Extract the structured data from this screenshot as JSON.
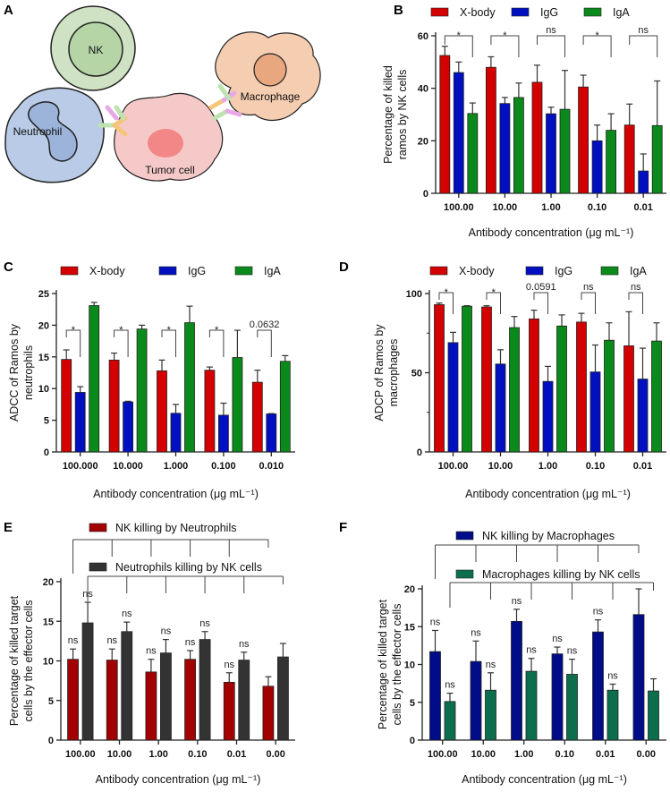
{
  "panel_a": {
    "label": "A",
    "cells": [
      "NK",
      "Neutrophil",
      "Tumor cell",
      "Macrophage"
    ],
    "colors": {
      "nk": "#cfe3c4",
      "neutrophil": "#b9cbe6",
      "tumor": "#f6c9c9",
      "macrophage": "#f5cdb0"
    }
  },
  "chart_data": [
    {
      "panel": "B",
      "type": "bar",
      "categories": [
        "100.00",
        "10.00",
        "1.00",
        "0.10",
        "0.01"
      ],
      "xlabel": "Antibody concentration (μg mL⁻¹)",
      "ylabel": [
        "Percentage of killed",
        "ramos by NK cells"
      ],
      "ylim": [
        0,
        60
      ],
      "yticks": [
        0,
        20,
        40,
        60
      ],
      "legend": "top",
      "series": [
        {
          "name": "X-body",
          "color": "#d40000",
          "values": [
            52.5,
            48,
            42.3,
            40.5,
            26
          ],
          "errors": [
            3.5,
            4,
            6.5,
            4.5,
            8
          ]
        },
        {
          "name": "IgG",
          "color": "#0010c0",
          "values": [
            46,
            34.2,
            30.3,
            20,
            8.5
          ],
          "errors": [
            4,
            2.3,
            2.5,
            6,
            6.5
          ]
        },
        {
          "name": "IgA",
          "color": "#0a8a1a",
          "values": [
            30.4,
            36.5,
            32,
            24,
            25.8
          ],
          "errors": [
            4,
            5.5,
            14.8,
            6.3,
            17
          ]
        }
      ],
      "comparisons": {
        "between": [
          "X-body",
          "IgA"
        ],
        "labels": [
          "*",
          "*",
          "ns",
          "*",
          "ns"
        ]
      }
    },
    {
      "panel": "C",
      "type": "bar",
      "categories": [
        "100.000",
        "10.000",
        "1.000",
        "0.100",
        "0.010"
      ],
      "xlabel": "Antibody concentration (μg mL⁻¹)",
      "ylabel": [
        "ADCC of Ramos by",
        "neutrophils"
      ],
      "ylim": [
        0,
        25
      ],
      "yticks": [
        0,
        5,
        10,
        15,
        20,
        25
      ],
      "legend": "top",
      "series": [
        {
          "name": "X-body",
          "color": "#d40000",
          "values": [
            14.6,
            14.5,
            12.8,
            12.9,
            11
          ],
          "errors": [
            1.5,
            1.1,
            1.7,
            0.5,
            1.9
          ]
        },
        {
          "name": "IgG",
          "color": "#0010c0",
          "values": [
            9.4,
            7.9,
            6.1,
            5.8,
            6.0
          ],
          "errors": [
            0.9,
            0.1,
            1.4,
            1.9,
            0.05
          ]
        },
        {
          "name": "IgA",
          "color": "#0a8a1a",
          "values": [
            23.1,
            19.4,
            20.4,
            14.9,
            14.3
          ],
          "errors": [
            0.5,
            0.6,
            2.6,
            4.3,
            0.9
          ]
        }
      ],
      "comparisons": {
        "between": [
          "X-body",
          "IgG"
        ],
        "labels": [
          "*",
          "*",
          "*",
          "*",
          "0.0632"
        ]
      }
    },
    {
      "panel": "D",
      "type": "bar",
      "categories": [
        "100.00",
        "10.00",
        "1.00",
        "0.10",
        "0.01"
      ],
      "xlabel": "Antibody concentration (μg mL⁻¹)",
      "ylabel": [
        "ADCP of Ramos by",
        "macrophages"
      ],
      "ylim": [
        0,
        100
      ],
      "yticks": [
        0,
        50,
        100
      ],
      "legend": "top",
      "series": [
        {
          "name": "X-body",
          "color": "#d40000",
          "values": [
            93,
            91.5,
            84,
            82,
            67
          ],
          "errors": [
            1,
            0.8,
            5.5,
            5.5,
            21.5
          ]
        },
        {
          "name": "IgG",
          "color": "#0010c0",
          "values": [
            69,
            55.5,
            44.5,
            50.5,
            46
          ],
          "errors": [
            6.5,
            9,
            9.5,
            17,
            19.5
          ]
        },
        {
          "name": "IgA",
          "color": "#0a8a1a",
          "values": [
            92,
            78.5,
            79.5,
            70.5,
            70
          ],
          "errors": [
            0.3,
            7,
            7,
            11,
            11.5
          ]
        }
      ],
      "comparisons": {
        "between": [
          "X-body",
          "IgG"
        ],
        "labels": [
          "*",
          "*",
          "0.0591",
          "ns",
          "ns"
        ]
      }
    },
    {
      "panel": "E",
      "type": "bar",
      "categories": [
        "100.00",
        "10.00",
        "1.00",
        "0.10",
        "0.01",
        "0.00"
      ],
      "xlabel": "Antibody concentration (μg mL⁻¹)",
      "ylabel": [
        "Percentage of killed target",
        "cells by the effector cells"
      ],
      "ylim": [
        0,
        20
      ],
      "yticks": [
        0,
        5,
        10,
        15,
        20
      ],
      "legend": "top",
      "series": [
        {
          "name": "NK killing by Neutrophils",
          "color": "#a30000",
          "values": [
            10.2,
            10.1,
            8.6,
            10.2,
            7.3,
            6.8
          ],
          "errors": [
            1.3,
            1.4,
            1.6,
            1.1,
            1.2,
            1.2
          ],
          "bar_labels": [
            "ns",
            "ns",
            "ns",
            "ns",
            "ns",
            ""
          ]
        },
        {
          "name": "Neutrophils killing by NK cells",
          "color": "#333333",
          "values": [
            14.8,
            13.7,
            11,
            12.7,
            10.1,
            10.5
          ],
          "errors": [
            2.6,
            1.2,
            1.7,
            1,
            1,
            1.7
          ],
          "bar_labels": [
            "ns",
            "ns",
            "ns",
            "ns",
            "ns",
            ""
          ]
        }
      ]
    },
    {
      "panel": "F",
      "type": "bar",
      "categories": [
        "100.00",
        "10.00",
        "1.00",
        "0.10",
        "0.01",
        "0.00"
      ],
      "xlabel": "Antibody concentration (μg mL⁻¹)",
      "ylabel": [
        "Percentage of killed target",
        "cells by the effector cells"
      ],
      "ylim": [
        0,
        20
      ],
      "yticks": [
        0,
        5,
        10,
        15,
        20
      ],
      "legend": "top",
      "series": [
        {
          "name": "NK killing by Macrophages",
          "color": "#000c88",
          "values": [
            11.7,
            10.4,
            15.7,
            11.4,
            14.3,
            16.6
          ],
          "errors": [
            2.8,
            2.7,
            1.6,
            0.9,
            1.6,
            3.4
          ],
          "bar_labels": [
            "ns",
            "ns",
            "ns",
            "ns",
            "ns",
            ""
          ]
        },
        {
          "name": "Macrophages killing by NK cells",
          "color": "#0d6e4e",
          "values": [
            5.1,
            6.6,
            9.1,
            8.7,
            6.6,
            6.5
          ],
          "errors": [
            1.1,
            2.3,
            1.7,
            2,
            0.8,
            1.6
          ],
          "bar_labels": [
            "ns",
            "ns",
            "ns",
            "ns",
            "ns",
            ""
          ]
        }
      ]
    }
  ]
}
